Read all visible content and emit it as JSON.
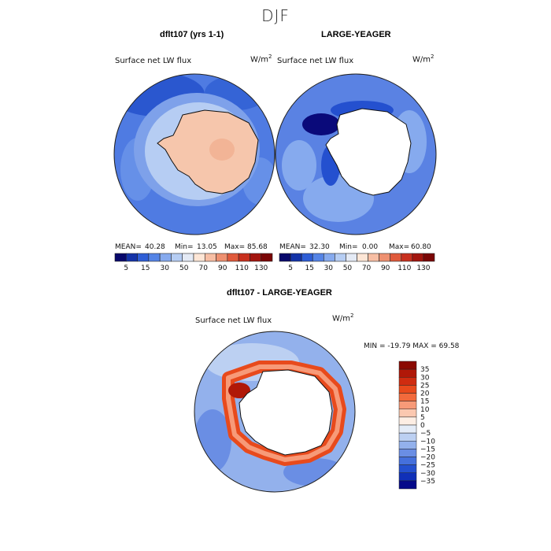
{
  "season_title": "DJF",
  "panel1": {
    "title": "dflt107 (yrs 1-1)",
    "variable": "Surface net LW flux",
    "units": "W/m",
    "units_exp": "2",
    "mean_label": "MEAN=",
    "mean": "40.28",
    "min_label": "Min=",
    "min": "13.05",
    "max_label": "Max=",
    "max": "85.68"
  },
  "panel2": {
    "title": "LARGE-YEAGER",
    "variable": "Surface net LW flux",
    "units": "W/m",
    "units_exp": "2",
    "mean_label": "MEAN=",
    "mean": "32.30",
    "min_label": "Min=",
    "min": "0.00",
    "max_label": "Max=",
    "max": "60.80"
  },
  "panel3": {
    "title": "dflt107 - LARGE-YEAGER",
    "variable": "Surface net LW flux",
    "units": "W/m",
    "units_exp": "2",
    "minmax": "MIN = -19.79 MAX =  69.58"
  },
  "chart_data": [
    {
      "type": "heatmap",
      "title": "dflt107 (yrs 1-1)",
      "variable": "Surface net LW flux",
      "units": "W/m2",
      "projection": "south polar stereographic",
      "stats": {
        "mean": 40.28,
        "min": 13.05,
        "max": 85.68
      },
      "colorbar_levels": [
        5,
        15,
        30,
        50,
        70,
        90,
        110,
        130
      ],
      "colorbar_tick_labels": [
        "5",
        "15",
        "30",
        "50",
        "70",
        "90",
        "110",
        "130"
      ],
      "colorbar_colors": [
        "#08086b",
        "#1433a8",
        "#2f5ed6",
        "#5584e6",
        "#86aaee",
        "#b6cdf3",
        "#e4eaf5",
        "#fde6d6",
        "#f7bea4",
        "#ee9070",
        "#e05a3c",
        "#c8301e",
        "#a3150e",
        "#7a0606"
      ]
    },
    {
      "type": "heatmap",
      "title": "LARGE-YEAGER",
      "variable": "Surface net LW flux",
      "units": "W/m2",
      "projection": "south polar stereographic",
      "stats": {
        "mean": 32.3,
        "min": 0.0,
        "max": 60.8
      },
      "colorbar_levels": [
        5,
        15,
        30,
        50,
        70,
        90,
        110,
        130
      ],
      "colorbar_tick_labels": [
        "5",
        "15",
        "30",
        "50",
        "70",
        "90",
        "110",
        "130"
      ]
    },
    {
      "type": "heatmap",
      "title": "dflt107 - LARGE-YEAGER",
      "variable": "Surface net LW flux",
      "units": "W/m2",
      "projection": "south polar stereographic",
      "stats": {
        "min": -19.79,
        "max": 69.58
      },
      "colorbar_levels": [
        35,
        30,
        25,
        20,
        15,
        10,
        5,
        0,
        -5,
        -10,
        -15,
        -20,
        -25,
        -30,
        -35
      ],
      "colorbar_tick_labels": [
        "35",
        "30",
        "25",
        "20",
        "15",
        "10",
        "5",
        "0",
        "−5",
        "−10",
        "−15",
        "−20",
        "−25",
        "−30",
        "−35"
      ],
      "colorbar_colors": [
        "#8b0a02",
        "#b01808",
        "#cf2c10",
        "#e84a1c",
        "#f26a3c",
        "#f79a78",
        "#fbc8b0",
        "#fdeee4",
        "#e4ecf8",
        "#bcd0f2",
        "#93b1ec",
        "#6a8ee4",
        "#4570dc",
        "#2450cf",
        "#1030b8",
        "#050a8a"
      ]
    }
  ]
}
